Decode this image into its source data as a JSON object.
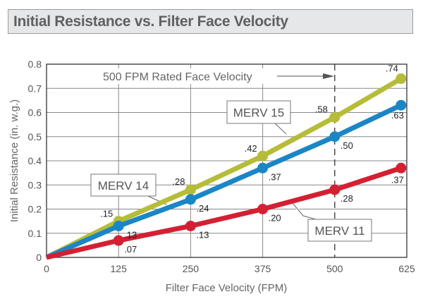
{
  "title": "Initial Resistance vs. Filter Face Velocity",
  "chart_data": {
    "type": "line",
    "title": "Initial Resistance vs. Filter Face Velocity",
    "xlabel": "Filter Face Velocity (FPM)",
    "ylabel": "Initial Resistance (in. w.g.)",
    "x": [
      0,
      125,
      250,
      375,
      500,
      625
    ],
    "xlim": [
      0,
      625
    ],
    "ylim": [
      0,
      0.8
    ],
    "x_ticks": [
      "0",
      "125",
      "250",
      "375",
      "500",
      "625"
    ],
    "y_ticks": [
      "0",
      "0.1",
      "0.2",
      "0.3",
      "0.4",
      "0.5",
      "0.6",
      "0.7",
      "0.8"
    ],
    "grid": true,
    "series": [
      {
        "name": "MERV 15",
        "color": "#b5bd38",
        "x": [
          0,
          125,
          250,
          375,
          500,
          615
        ],
        "values": [
          0,
          0.15,
          0.28,
          0.42,
          0.58,
          0.74
        ],
        "labels": [
          "",
          ".15",
          ".28",
          ".42",
          ".58",
          ".74"
        ]
      },
      {
        "name": "MERV 14",
        "color": "#1a86c6",
        "x": [
          0,
          125,
          250,
          375,
          500,
          615
        ],
        "values": [
          0,
          0.13,
          0.24,
          0.37,
          0.5,
          0.63
        ],
        "labels": [
          "",
          ".13",
          ".24",
          ".37",
          ".50",
          ".63"
        ]
      },
      {
        "name": "MERV 11",
        "color": "#d42032",
        "x": [
          0,
          125,
          250,
          375,
          500,
          615
        ],
        "values": [
          0,
          0.07,
          0.13,
          0.2,
          0.28,
          0.37
        ],
        "labels": [
          "",
          ".07",
          ".13",
          ".20",
          ".28",
          ".37"
        ]
      }
    ],
    "annotations": [
      {
        "text": "500 FPM Rated Face Velocity",
        "x": 500,
        "type": "vertical-dashed-reference"
      }
    ],
    "callouts": {
      "MERV 15": "MERV 15",
      "MERV 14": "MERV 14",
      "MERV 11": "MERV 11"
    }
  }
}
